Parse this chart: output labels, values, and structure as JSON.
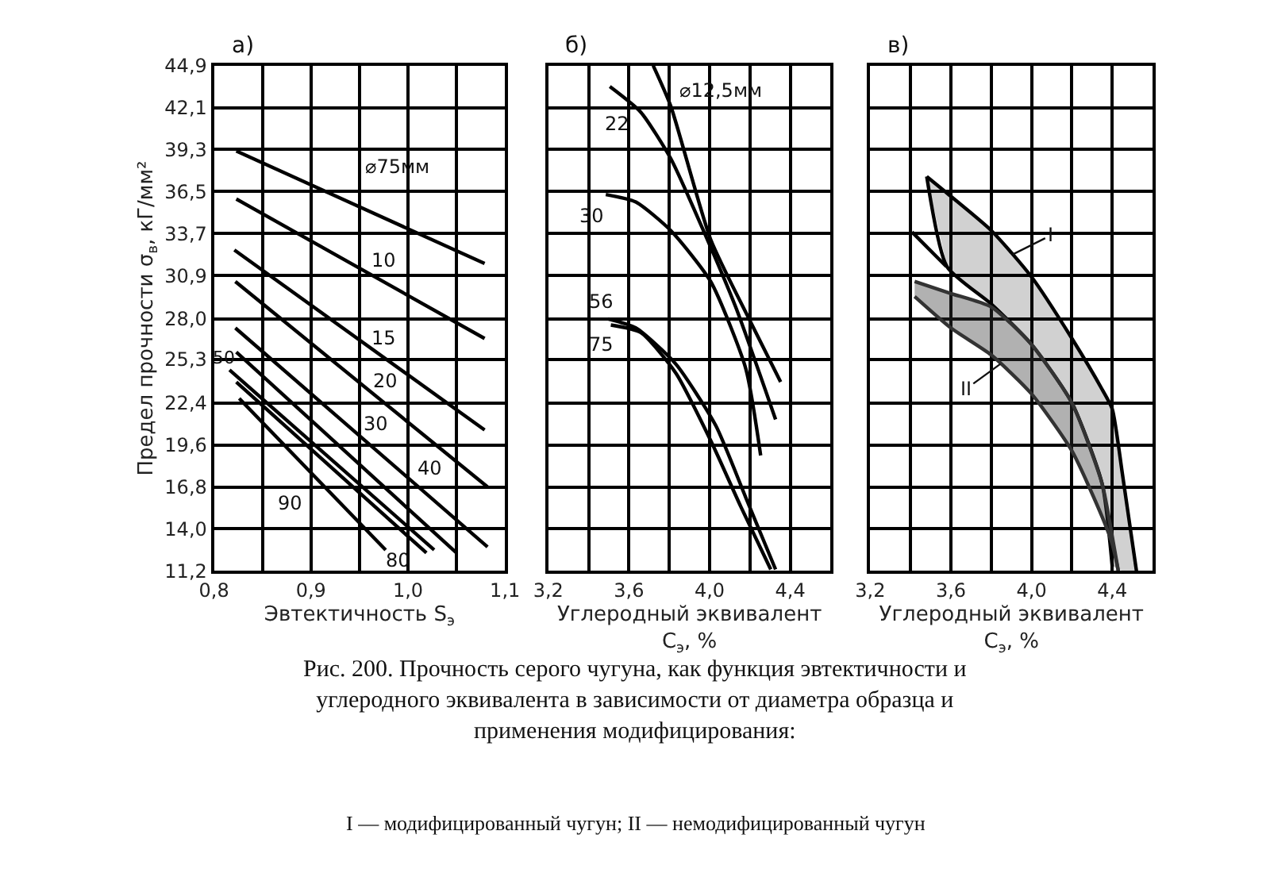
{
  "chart_data": [
    {
      "type": "line",
      "title": "а)",
      "xlabel": "Эвтектичность S$_{э}$",
      "ylabel": "Предел прочности σ$_{в}$, кГ/мм²",
      "xlim": [
        0.8,
        1.1
      ],
      "ylim": [
        11.2,
        44.9
      ],
      "xticks": [
        {
          "value": 0.8,
          "label": "0,8"
        },
        {
          "value": 0.85,
          "label": null
        },
        {
          "value": 0.9,
          "label": "0,9"
        },
        {
          "value": 0.95,
          "label": null
        },
        {
          "value": 1.0,
          "label": "1,0"
        },
        {
          "value": 1.05,
          "label": null
        },
        {
          "value": 1.1,
          "label": "1,1"
        }
      ],
      "yticks": [
        {
          "value": 11.2,
          "label": "11,2"
        },
        {
          "value": 14.0,
          "label": "14,0"
        },
        {
          "value": 16.8,
          "label": "16,8"
        },
        {
          "value": 19.6,
          "label": "19,6"
        },
        {
          "value": 22.4,
          "label": "22,4"
        },
        {
          "value": 25.3,
          "label": "25,3"
        },
        {
          "value": 28.0,
          "label": "28,0"
        },
        {
          "value": 30.9,
          "label": "30,9"
        },
        {
          "value": 33.7,
          "label": "33,7"
        },
        {
          "value": 36.5,
          "label": "36,5"
        },
        {
          "value": 39.3,
          "label": "39,3"
        },
        {
          "value": 42.1,
          "label": "42,1"
        },
        {
          "value": 44.9,
          "label": "44,9"
        }
      ],
      "grid": true,
      "series": [
        {
          "color": "#000000",
          "x": [
            0.823,
            1.079
          ],
          "values": [
            39.2,
            31.7
          ]
        },
        {
          "color": "#000000",
          "x": [
            0.823,
            1.079
          ],
          "values": [
            36.0,
            26.7
          ]
        },
        {
          "color": "#000000",
          "x": [
            0.821,
            1.079
          ],
          "values": [
            32.6,
            20.6
          ]
        },
        {
          "color": "#000000",
          "x": [
            0.822,
            1.082
          ],
          "values": [
            30.5,
            16.8
          ]
        },
        {
          "color": "#000000",
          "x": [
            0.822,
            1.082
          ],
          "values": [
            27.4,
            12.8
          ]
        },
        {
          "color": "#000000",
          "x": [
            0.823,
            1.05
          ],
          "values": [
            25.8,
            12.4
          ]
        },
        {
          "color": "#000000",
          "x": [
            0.816,
            1.027
          ],
          "values": [
            24.6,
            12.6
          ]
        },
        {
          "color": "#000000",
          "x": [
            0.823,
            1.019
          ],
          "values": [
            23.8,
            12.4
          ]
        },
        {
          "color": "#000000",
          "x": [
            0.826,
            0.977
          ],
          "values": [
            22.7,
            12.6
          ]
        }
      ],
      "annotations": [
        {
          "text": "⌀75мм",
          "x": 0.99,
          "y": 34.3
        },
        {
          "text": "10",
          "x": 0.975,
          "y": 30.5
        },
        {
          "text": "15",
          "x": 0.975,
          "y": 25.4
        },
        {
          "text": "20",
          "x": 0.977,
          "y": 22.3
        },
        {
          "text": "30",
          "x": 0.967,
          "y": 19.3
        },
        {
          "text": "40",
          "x": 1.022,
          "y": 14.1
        },
        {
          "text": "50",
          "x": 0.816,
          "y": 24.6
        },
        {
          "text": "90",
          "x": 0.878,
          "y": 19.2
        },
        {
          "text": "80",
          "x": 1.011,
          "y": 12.9
        },
        "Рис. 200. Прочность серого чугуна, как функция эвтектичности и углеродного эквивалента в зависимости от диаметра образца и применения модифицирования:",
        "I — модифицированный чугун; II — немодифицированный чугун"
      ]
    },
    {
      "type": "line",
      "title": "б)",
      "xlabel": "Углеродный эквивалент C$_{э}$, %",
      "xlim": [
        3.2,
        4.6
      ],
      "ylim": [
        11.2,
        44.9
      ],
      "xticks": [
        {
          "value": 3.2,
          "label": "3,2"
        },
        {
          "value": 3.4,
          "label": null
        },
        {
          "value": 3.6,
          "label": "3,6"
        },
        {
          "value": 3.8,
          "label": null
        },
        {
          "value": 4.0,
          "label": "4,0"
        },
        {
          "value": 4.2,
          "label": null
        },
        {
          "value": 4.4,
          "label": "4,4"
        },
        {
          "value": 4.6,
          "label": null
        }
      ],
      "yticks": [
        11.2,
        14.0,
        16.8,
        19.6,
        22.4,
        25.3,
        28.0,
        30.9,
        33.7,
        36.5,
        39.3,
        42.1,
        44.9
      ],
      "tick_labels": "x",
      "grid": true,
      "series": [
        {
          "color": "#000000",
          "x": [
            3.72,
            3.807,
            4.005,
            4.203,
            4.352
          ],
          "values": [
            44.9,
            42.2,
            33.3,
            27.8,
            23.8
          ]
        },
        {
          "color": "#000000",
          "x": [
            3.505,
            3.658,
            3.807,
            3.956,
            4.129,
            4.327
          ],
          "values": [
            43.5,
            41.8,
            38.7,
            34.3,
            28.8,
            21.3
          ]
        },
        {
          "color": "#000000",
          "x": [
            3.485,
            3.634,
            3.807,
            4.005,
            4.179,
            4.253
          ],
          "values": [
            36.3,
            35.8,
            33.9,
            30.5,
            24.7,
            18.9
          ]
        },
        {
          "color": "#000000",
          "x": [
            3.497,
            3.634,
            3.832,
            4.03,
            4.179,
            4.327
          ],
          "values": [
            28.0,
            27.4,
            25.0,
            20.9,
            16.1,
            11.3
          ]
        },
        {
          "color": "#000000",
          "x": [
            3.51,
            3.658,
            3.832,
            4.005,
            4.154,
            4.303
          ],
          "values": [
            27.6,
            27.1,
            24.4,
            19.9,
            15.5,
            11.3
          ]
        }
      ],
      "annotations": [
        {
          "text": "⌀12,5мм",
          "x": 3.775,
          "y": 43.2
        },
        {
          "text": "22",
          "x": 3.505,
          "y": 43.5
        },
        {
          "text": "30",
          "x": 3.485,
          "y": 36.3
        },
        {
          "text": "56",
          "x": 3.497,
          "y": 28.0
        },
        {
          "text": "75",
          "x": 3.51,
          "y": 27.6
        }
      ]
    },
    {
      "type": "line",
      "title": "в)",
      "xlabel": "Углеродный эквивалент C$_{э}$, %",
      "xlim": [
        3.2,
        4.6
      ],
      "ylim": [
        11.2,
        44.9
      ],
      "xticks": [
        {
          "value": 3.2,
          "label": "3,2"
        },
        {
          "value": 3.4,
          "label": null
        },
        {
          "value": 3.6,
          "label": "3,6"
        },
        {
          "value": 3.8,
          "label": null
        },
        {
          "value": 4.0,
          "label": "4,0"
        },
        {
          "value": 4.2,
          "label": null
        },
        {
          "value": 4.4,
          "label": "4,4"
        },
        {
          "value": 4.6,
          "label": null
        }
      ],
      "yticks": [
        11.2,
        14.0,
        16.8,
        19.6,
        22.4,
        25.3,
        28.0,
        30.9,
        33.7,
        36.5,
        39.3,
        42.1,
        44.9
      ],
      "tick_labels": "x",
      "grid": true,
      "series": [
        {
          "color": "#000000",
          "x": [
            3.48,
            3.58,
            3.8,
            4.0,
            4.2,
            4.35,
            4.4,
            4.45,
            4.52
          ],
          "lower": [
            37.5,
            31.5,
            29.0,
            26.3,
            22.4,
            17.0,
            11.5,
            11.2,
            11.2
          ],
          "upper": [
            37.5,
            36.4,
            33.9,
            30.8,
            26.7,
            23.3,
            22.0,
            17.7,
            11.2
          ],
          "values": [
            37.5,
            36.4,
            33.9,
            30.8,
            26.7,
            23.3,
            22.0,
            17.7,
            11.2
          ]
        },
        {
          "color": "#000000",
          "x": [
            3.48,
            3.58,
            3.8,
            4.0,
            4.2,
            4.35,
            4.4
          ],
          "values": [
            37.5,
            31.5,
            29.0,
            26.3,
            22.4,
            17.0,
            11.5
          ]
        },
        {
          "color": "#333333",
          "x": [
            3.42,
            3.6,
            3.8,
            4.0,
            4.2,
            4.35,
            4.4,
            4.43
          ],
          "lower": [
            29.5,
            27.4,
            25.6,
            23.0,
            19.2,
            14.8,
            13.0,
            11.2
          ],
          "upper": [
            30.5,
            29.7,
            28.8,
            26.3,
            22.4,
            17.0,
            13.5,
            11.2
          ],
          "values": [
            30.5,
            29.7,
            28.8,
            26.3,
            22.4,
            17.0,
            13.5,
            11.2
          ]
        },
        {
          "color": "#333333",
          "x": [
            3.42,
            3.6,
            3.8,
            4.0,
            4.2,
            4.35,
            4.4,
            4.43
          ],
          "values": [
            29.5,
            27.4,
            25.6,
            23.0,
            19.2,
            14.8,
            13.0,
            11.2
          ]
        },
        {
          "type": "line",
          "color": "#000000",
          "x": [
            3.407,
            3.577
          ],
          "values": [
            33.8,
            31.5
          ]
        }
      ],
      "annotations": [
        {
          "text": "I",
          "x": 3.906,
          "y": 32.3
        },
        {
          "text": "II",
          "x": 3.845,
          "y": 25.0
        }
      ]
    }
  ]
}
